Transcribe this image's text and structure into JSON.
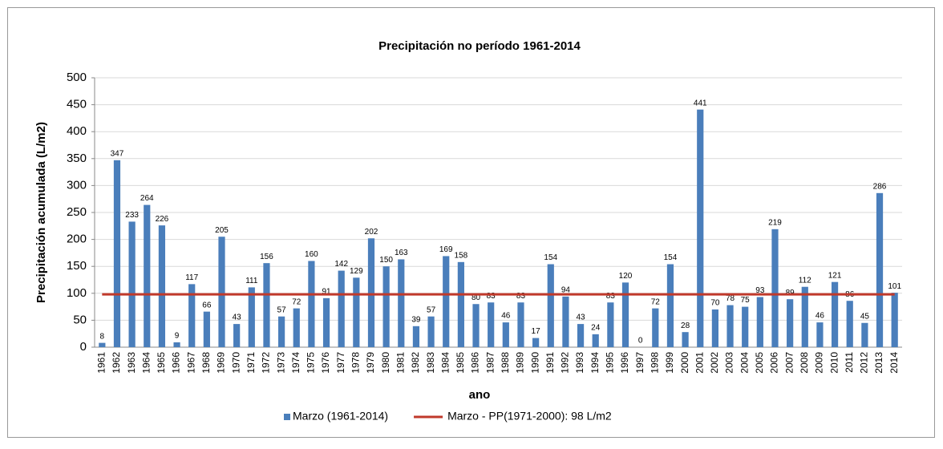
{
  "chart_data": {
    "type": "bar",
    "title": "Precipitación  no período 1961-2014",
    "x_label": "ano",
    "y_label": "Precipitación  acumulada  (L/m2)",
    "categories": [
      "1961",
      "1962",
      "1963",
      "1964",
      "1965",
      "1966",
      "1967",
      "1968",
      "1969",
      "1970",
      "1971",
      "1972",
      "1973",
      "1974",
      "1975",
      "1976",
      "1977",
      "1978",
      "1979",
      "1980",
      "1981",
      "1982",
      "1983",
      "1984",
      "1985",
      "1986",
      "1987",
      "1988",
      "1989",
      "1990",
      "1991",
      "1992",
      "1993",
      "1994",
      "1995",
      "1996",
      "1997",
      "1998",
      "1999",
      "2000",
      "2001",
      "2002",
      "2003",
      "2004",
      "2005",
      "2006",
      "2007",
      "2008",
      "2009",
      "2010",
      "2011",
      "2012",
      "2013",
      "2014"
    ],
    "series": [
      {
        "name": "Marzo (1961-2014)",
        "type": "bar",
        "color": "#4a7ebb",
        "values": [
          8,
          347,
          233,
          264,
          226,
          9,
          117,
          66,
          205,
          43,
          111,
          156,
          57,
          72,
          160,
          91,
          142,
          129,
          202,
          150,
          163,
          39,
          57,
          169,
          158,
          80,
          83,
          46,
          83,
          17,
          154,
          94,
          43,
          24,
          83,
          120,
          0,
          72,
          154,
          28,
          441,
          70,
          78,
          75,
          93,
          219,
          89,
          112,
          46,
          121,
          86,
          45,
          286,
          101
        ]
      },
      {
        "name": "Marzo - PP(1971-2000): 98 L/m2",
        "type": "line",
        "color": "#c0392b",
        "values": [
          98,
          98,
          98,
          98,
          98,
          98,
          98,
          98,
          98,
          98,
          98,
          98,
          98,
          98,
          98,
          98,
          98,
          98,
          98,
          98,
          98,
          98,
          98,
          98,
          98,
          98,
          98,
          98,
          98,
          98,
          98,
          98,
          98,
          98,
          98,
          98,
          98,
          98,
          98,
          98,
          98,
          98,
          98,
          98,
          98,
          98,
          98,
          98,
          98,
          98,
          98,
          98,
          98,
          98
        ]
      }
    ],
    "ylim": [
      0,
      500
    ],
    "yticks": [
      0,
      50,
      100,
      150,
      200,
      250,
      300,
      350,
      400,
      450,
      500
    ],
    "grid": true
  }
}
